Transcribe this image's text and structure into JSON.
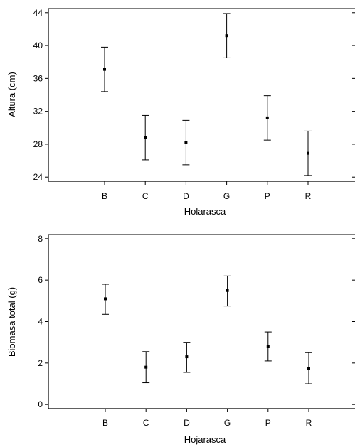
{
  "chart_data": [
    {
      "type": "scatter",
      "subtype": "means-with-error-bars",
      "xlabel": "Holarasca",
      "ylabel": "Altura (cm)",
      "categories": [
        "B",
        "C",
        "D",
        "G",
        "P",
        "R"
      ],
      "ylim": [
        23.5,
        44.5
      ],
      "yticks": [
        24,
        28,
        32,
        36,
        40,
        44
      ],
      "grid": false,
      "series": [
        {
          "means": [
            37.1,
            28.8,
            28.2,
            41.2,
            31.2,
            26.9
          ],
          "lower": [
            34.4,
            26.1,
            25.5,
            38.5,
            28.5,
            24.2
          ],
          "upper": [
            39.8,
            31.5,
            30.9,
            43.9,
            33.9,
            29.6
          ]
        }
      ]
    },
    {
      "type": "scatter",
      "subtype": "means-with-error-bars",
      "xlabel": "Hojarasca",
      "ylabel": "Biomasa total (g)",
      "categories": [
        "B",
        "C",
        "D",
        "G",
        "P",
        "R"
      ],
      "ylim": [
        -0.2,
        8.2
      ],
      "yticks": [
        0,
        2,
        4,
        6,
        8
      ],
      "grid": false,
      "series": [
        {
          "means": [
            5.1,
            1.8,
            2.3,
            5.5,
            2.8,
            1.75
          ],
          "lower": [
            4.35,
            1.05,
            1.55,
            4.75,
            2.1,
            1.0
          ],
          "upper": [
            5.8,
            2.55,
            3.0,
            6.2,
            3.5,
            2.5
          ]
        }
      ]
    }
  ],
  "colors": {
    "axis": "#000000",
    "frame": "#7f7f7f",
    "marker": "#000000"
  }
}
